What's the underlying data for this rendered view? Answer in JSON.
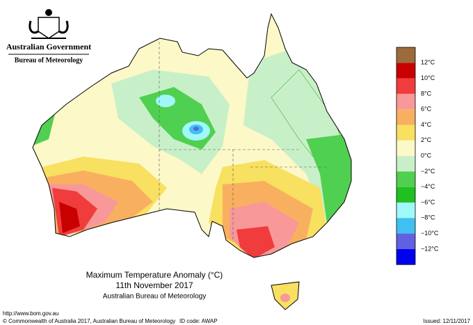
{
  "header": {
    "government": "Australian Government",
    "bureau": "Bureau of Meteorology"
  },
  "legend": {
    "colors": [
      "#9c6b3c",
      "#c80000",
      "#f03c3c",
      "#f89898",
      "#f8b060",
      "#f8e060",
      "#fcf8c8",
      "#c8f0c8",
      "#50d050",
      "#20c020",
      "#a0f8f8",
      "#40c0f0",
      "#6060e0",
      "#0000f0"
    ],
    "labels": [
      "12°C",
      "10°C",
      "8°C",
      "6°C",
      "4°C",
      "2°C",
      "0°C",
      "−2°C",
      "−4°C",
      "−6°C",
      "−8°C",
      "−10°C",
      "−12°C"
    ]
  },
  "title": {
    "line1": "Maximum Temperature Anomaly (°C)",
    "line2": "11th November 2017",
    "line3": "Australian Bureau of Meteorology"
  },
  "footer": {
    "url": "http://www.bom.gov.au",
    "copyright": "© Commonwealth of Australia 2017, Australian Bureau of Meteorology",
    "id": "ID code: AWAP",
    "issued": "Issued: 12/11/2017"
  }
}
